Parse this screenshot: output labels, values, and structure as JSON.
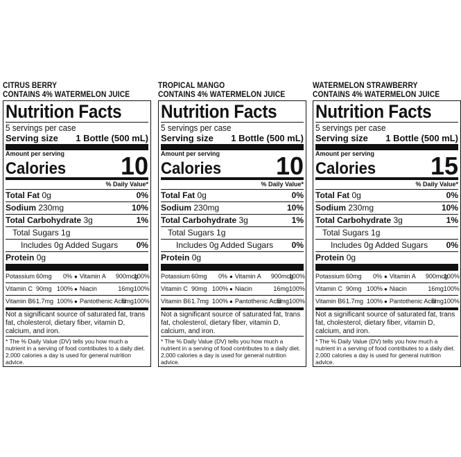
{
  "labels": [
    {
      "flavor": "CITRUS BERRY",
      "juice": "CONTAINS 4% WATERMELON JUICE",
      "title": "Nutrition Facts",
      "servings": "5 servings per case",
      "serving_size_label": "Serving size",
      "serving_size_value": "1 Bottle (500 mL)",
      "amount_per_serving": "Amount per serving",
      "calories_label": "Calories",
      "calories_value": "10",
      "dv_header": "% Daily Value*",
      "total_fat": "Total Fat",
      "total_fat_amt": "0g",
      "total_fat_dv": "0%",
      "sodium": "Sodium",
      "sodium_amt": "230mg",
      "sodium_dv": "10%",
      "carb": "Total Carbohydrate",
      "carb_amt": "3g",
      "carb_dv": "1%",
      "sugars": "Total Sugars 1g",
      "added_sugars": "Includes 0g Added Sugars",
      "added_sugars_dv": "0%",
      "protein": "Protein",
      "protein_amt": "0g",
      "micro": [
        [
          "Potassium",
          "60mg",
          "0%",
          "Vitamin A",
          "900mcg",
          "100%"
        ],
        [
          "Vitamin C",
          "90mg",
          "100%",
          "Niacin",
          "16mg",
          "100%"
        ],
        [
          "Vitamin B6",
          "1.7mg",
          "100%",
          "Pantothenic Acid",
          "5mg",
          "100%"
        ]
      ],
      "not_significant": "Not a significant source of saturated fat, trans fat, cholesterol, dietary fiber, vitamin D, calcium, and iron.",
      "dv_note": "* The % Daily Value (DV) tells you how much a nutrient in a serving of food contributes to a daily diet. 2,000 calories a day is used for general nutrition advice."
    },
    {
      "flavor": "TROPICAL MANGO",
      "juice": "CONTAINS 4% WATERMELON JUICE",
      "title": "Nutrition Facts",
      "servings": "5 servings per case",
      "serving_size_label": "Serving size",
      "serving_size_value": "1 Bottle (500 mL)",
      "amount_per_serving": "Amount per serving",
      "calories_label": "Calories",
      "calories_value": "10",
      "dv_header": "% Daily Value*",
      "total_fat": "Total Fat",
      "total_fat_amt": "0g",
      "total_fat_dv": "0%",
      "sodium": "Sodium",
      "sodium_amt": "230mg",
      "sodium_dv": "10%",
      "carb": "Total Carbohydrate",
      "carb_amt": "3g",
      "carb_dv": "1%",
      "sugars": "Total Sugars 1g",
      "added_sugars": "Includes 0g Added Sugars",
      "added_sugars_dv": "0%",
      "protein": "Protein",
      "protein_amt": "0g",
      "micro": [
        [
          "Potassium",
          "60mg",
          "0%",
          "Vitamin A",
          "900mcg",
          "100%"
        ],
        [
          "Vitamin C",
          "90mg",
          "100%",
          "Niacin",
          "16mg",
          "100%"
        ],
        [
          "Vitamin B6",
          "1.7mg",
          "100%",
          "Pantothenic Acid",
          "5mg",
          "100%"
        ]
      ],
      "not_significant": "Not a significant source of saturated fat, trans fat, cholesterol, dietary fiber, vitamin D, calcium, and iron.",
      "dv_note": "* The % Daily Value (DV) tells you how much a nutrient in a serving of food contributes to a daily diet. 2,000 calories a day is used for general nutrition advice."
    },
    {
      "flavor": "WATERMELON STRAWBERRY",
      "juice": "CONTAINS 4% WATERMELON JUICE",
      "title": "Nutrition Facts",
      "servings": "5 servings per case",
      "serving_size_label": "Serving size",
      "serving_size_value": "1 Bottle (500 mL)",
      "amount_per_serving": "Amount per serving",
      "calories_label": "Calories",
      "calories_value": "15",
      "dv_header": "% Daily Value*",
      "total_fat": "Total Fat",
      "total_fat_amt": "0g",
      "total_fat_dv": "0%",
      "sodium": "Sodium",
      "sodium_amt": "230mg",
      "sodium_dv": "10%",
      "carb": "Total Carbohydrate",
      "carb_amt": "3g",
      "carb_dv": "1%",
      "sugars": "Total Sugars 1g",
      "added_sugars": "Includes 0g Added Sugars",
      "added_sugars_dv": "0%",
      "protein": "Protein",
      "protein_amt": "0g",
      "micro": [
        [
          "Potassium",
          "60mg",
          "0%",
          "Vitamin A",
          "900mcg",
          "100%"
        ],
        [
          "Vitamin C",
          "90mg",
          "100%",
          "Niacin",
          "16mg",
          "100%"
        ],
        [
          "Vitamin B6",
          "1.7mg",
          "100%",
          "Pantothenic Acid",
          "5mg",
          "100%"
        ]
      ],
      "not_significant": "Not a significant source of saturated fat, trans fat, cholesterol, dietary fiber, vitamin D, calcium, and iron.",
      "dv_note": "* The % Daily Value (DV) tells you how much a nutrient in a serving of food contributes to a daily diet. 2,000 calories a day is used for general nutrition advice."
    }
  ]
}
